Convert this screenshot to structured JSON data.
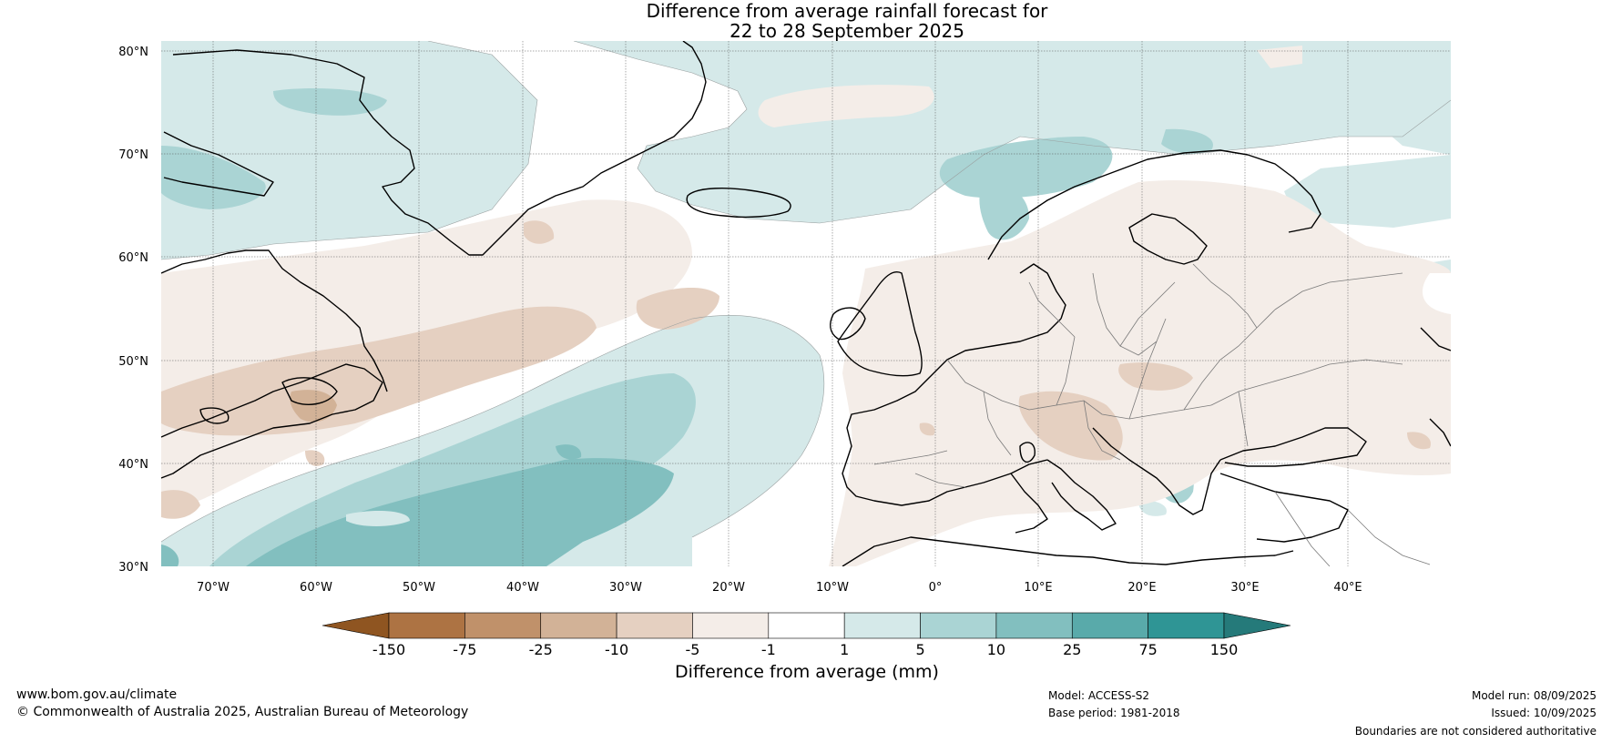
{
  "title": {
    "line1": "Difference from average rainfall forecast for",
    "line2": "22 to 28 September 2025"
  },
  "map": {
    "lat_labels": [
      "80°N",
      "70°N",
      "60°N",
      "50°N",
      "40°N",
      "30°N"
    ],
    "lon_labels": [
      "70°W",
      "60°W",
      "50°W",
      "40°W",
      "30°W",
      "20°W",
      "10°W",
      "0°",
      "10°E",
      "20°E",
      "30°E",
      "40°E"
    ],
    "extent": {
      "lon_min": -75,
      "lon_max": 50,
      "lat_min": 30,
      "lat_max": 81
    }
  },
  "colorbar": {
    "title": "Difference from average (mm)",
    "tick_labels": [
      "-150",
      "-75",
      "-25",
      "-10",
      "-5",
      "-1",
      "1",
      "5",
      "10",
      "25",
      "75",
      "150"
    ],
    "colors": [
      "#8f5521",
      "#ad7343",
      "#c0916a",
      "#d2b297",
      "#e5d0c1",
      "#f4ede8",
      "#ffffff",
      "#d5e9e9",
      "#aad4d4",
      "#82bfbf",
      "#59aaaa",
      "#2f9595",
      "#257a7a"
    ]
  },
  "footer": {
    "website": "www.bom.gov.au/climate",
    "copyright": "© Commonwealth of Australia 2025, Australian Bureau of Meteorology",
    "model": "Model: ACCESS-S2",
    "base_period": "Base period: 1981-2018",
    "model_run": "Model run: 08/09/2025",
    "issued": "Issued: 10/09/2025",
    "disclaimer": "Boundaries are not considered authoritative"
  }
}
